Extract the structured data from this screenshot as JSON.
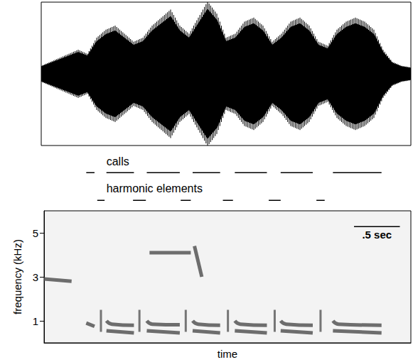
{
  "chart_data": [
    {
      "type": "oscillogram",
      "x": [
        0,
        0.1,
        0.2,
        0.3,
        0.4,
        0.5,
        0.6,
        0.7,
        0.8,
        0.9,
        1.0,
        1.1,
        1.2,
        1.3,
        1.4,
        1.5,
        1.6,
        1.7,
        1.8,
        1.9,
        2.0,
        2.1,
        2.2,
        2.3,
        2.4,
        2.5,
        2.6,
        2.7,
        2.8,
        2.9,
        3.0,
        3.1,
        3.2,
        3.3,
        3.4,
        3.5,
        3.6,
        3.7,
        3.8,
        3.9,
        4.0
      ],
      "values": [
        0.1,
        0.15,
        0.2,
        0.25,
        0.3,
        0.25,
        0.45,
        0.55,
        0.6,
        0.5,
        0.4,
        0.45,
        0.6,
        0.7,
        0.8,
        0.6,
        0.5,
        0.7,
        0.9,
        0.75,
        0.45,
        0.5,
        0.65,
        0.7,
        0.6,
        0.4,
        0.5,
        0.65,
        0.7,
        0.6,
        0.4,
        0.35,
        0.55,
        0.65,
        0.7,
        0.65,
        0.55,
        0.3,
        0.15,
        0.1,
        0.08
      ],
      "xlim": [
        0,
        4.0
      ],
      "ylim": [
        -1,
        1
      ],
      "tick_labels": false,
      "color": "#000000"
    },
    {
      "type": "segments",
      "xlim": [
        0,
        4.0
      ],
      "tick_labels": false,
      "color": "#000000",
      "series": [
        {
          "name": "calls",
          "values": [
            [
              0.46,
              0.55
            ],
            [
              0.68,
              0.98
            ],
            [
              1.12,
              1.48
            ],
            [
              1.62,
              1.92
            ],
            [
              2.08,
              2.43
            ],
            [
              2.58,
              2.93
            ],
            [
              3.15,
              3.68
            ]
          ]
        },
        {
          "name": "harmonic elements",
          "values": [
            [
              0.58,
              0.66
            ],
            [
              0.97,
              1.11
            ],
            [
              1.49,
              1.6
            ],
            [
              1.95,
              2.06
            ],
            [
              2.45,
              2.58
            ],
            [
              2.97,
              3.06
            ]
          ]
        }
      ]
    },
    {
      "type": "spectrogram",
      "xlabel": "time",
      "ylabel": "frequency (kHz)",
      "xlim": [
        0,
        4.0
      ],
      "ylim": [
        0,
        6
      ],
      "yticks": [
        1,
        3,
        5
      ],
      "tick_labels": "y",
      "color": "#555555",
      "contours": [
        [
          [
            0.46,
            0.9
          ],
          [
            0.55,
            0.75
          ]
        ],
        [
          [
            0.68,
            1.0
          ],
          [
            0.74,
            0.85
          ],
          [
            0.98,
            0.8
          ]
        ],
        [
          [
            1.12,
            1.0
          ],
          [
            1.18,
            0.85
          ],
          [
            1.48,
            0.82
          ]
        ],
        [
          [
            1.62,
            1.0
          ],
          [
            1.68,
            0.85
          ],
          [
            1.92,
            0.8
          ]
        ],
        [
          [
            2.08,
            1.0
          ],
          [
            2.14,
            0.85
          ],
          [
            2.43,
            0.8
          ]
        ],
        [
          [
            2.58,
            1.0
          ],
          [
            2.64,
            0.85
          ],
          [
            2.93,
            0.8
          ]
        ],
        [
          [
            3.15,
            1.0
          ],
          [
            3.21,
            0.85
          ],
          [
            3.68,
            0.8
          ]
        ],
        [
          [
            0.68,
            0.55
          ],
          [
            0.98,
            0.45
          ]
        ],
        [
          [
            1.12,
            0.55
          ],
          [
            1.48,
            0.45
          ]
        ],
        [
          [
            1.62,
            0.55
          ],
          [
            1.92,
            0.45
          ]
        ],
        [
          [
            2.08,
            0.55
          ],
          [
            2.43,
            0.45
          ]
        ],
        [
          [
            2.58,
            0.55
          ],
          [
            2.93,
            0.45
          ]
        ],
        [
          [
            3.15,
            0.55
          ],
          [
            3.68,
            0.45
          ]
        ],
        [
          [
            0.0,
            2.9
          ],
          [
            0.3,
            2.8
          ]
        ],
        [
          [
            1.15,
            4.1
          ],
          [
            1.6,
            4.1
          ]
        ],
        [
          [
            1.64,
            4.4
          ],
          [
            1.72,
            3.0
          ]
        ]
      ],
      "harmonic_band": [
        0.5,
        1.5
      ],
      "scale_bar": {
        "length": 0.5,
        "label": ".5 sec"
      }
    }
  ]
}
